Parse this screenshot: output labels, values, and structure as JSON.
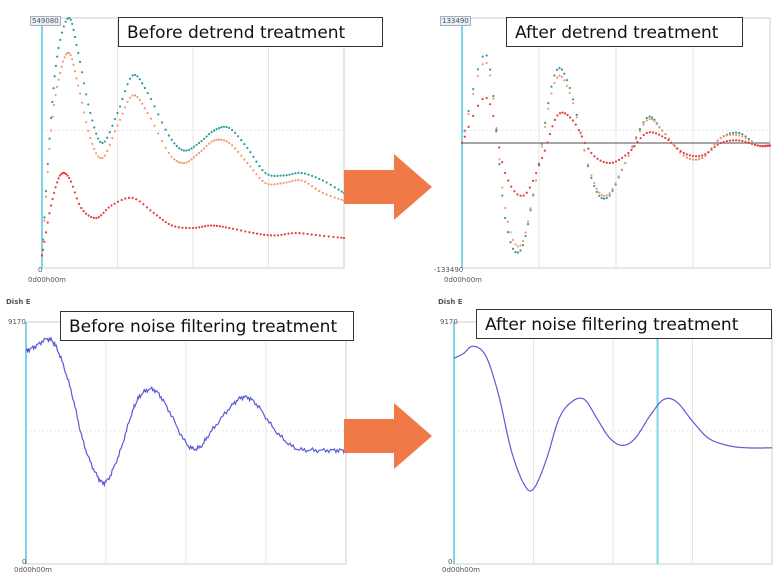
{
  "panels": [
    {
      "id": "p1",
      "title": "Before detrend treatment",
      "y_max_label": "549080",
      "y_min_label": "0",
      "x_label": "0d00h00m",
      "series": [
        {
          "color": "#2e9a97",
          "style": "dots",
          "points": [
            [
              0,
              0.05
            ],
            [
              0.03,
              0.6
            ],
            [
              0.055,
              0.88
            ],
            [
              0.09,
              1.0
            ],
            [
              0.12,
              0.86
            ],
            [
              0.16,
              0.62
            ],
            [
              0.2,
              0.5
            ],
            [
              0.25,
              0.62
            ],
            [
              0.3,
              0.77
            ],
            [
              0.35,
              0.7
            ],
            [
              0.42,
              0.53
            ],
            [
              0.47,
              0.47
            ],
            [
              0.52,
              0.5
            ],
            [
              0.57,
              0.55
            ],
            [
              0.62,
              0.56
            ],
            [
              0.68,
              0.48
            ],
            [
              0.74,
              0.38
            ],
            [
              0.8,
              0.37
            ],
            [
              0.86,
              0.38
            ],
            [
              0.93,
              0.35
            ],
            [
              1.0,
              0.3
            ]
          ]
        },
        {
          "color": "#f29a6b",
          "style": "dots",
          "points": [
            [
              0,
              0.05
            ],
            [
              0.03,
              0.55
            ],
            [
              0.06,
              0.78
            ],
            [
              0.09,
              0.86
            ],
            [
              0.12,
              0.73
            ],
            [
              0.16,
              0.52
            ],
            [
              0.2,
              0.44
            ],
            [
              0.25,
              0.57
            ],
            [
              0.3,
              0.69
            ],
            [
              0.35,
              0.62
            ],
            [
              0.42,
              0.46
            ],
            [
              0.47,
              0.42
            ],
            [
              0.52,
              0.46
            ],
            [
              0.57,
              0.51
            ],
            [
              0.62,
              0.5
            ],
            [
              0.68,
              0.42
            ],
            [
              0.74,
              0.34
            ],
            [
              0.8,
              0.34
            ],
            [
              0.86,
              0.35
            ],
            [
              0.93,
              0.3
            ],
            [
              1.0,
              0.27
            ]
          ]
        },
        {
          "color": "#e83a3a",
          "style": "dots",
          "points": [
            [
              0,
              0.05
            ],
            [
              0.03,
              0.25
            ],
            [
              0.06,
              0.37
            ],
            [
              0.09,
              0.36
            ],
            [
              0.13,
              0.24
            ],
            [
              0.18,
              0.2
            ],
            [
              0.23,
              0.25
            ],
            [
              0.3,
              0.28
            ],
            [
              0.37,
              0.22
            ],
            [
              0.43,
              0.17
            ],
            [
              0.5,
              0.16
            ],
            [
              0.56,
              0.17
            ],
            [
              0.62,
              0.16
            ],
            [
              0.7,
              0.14
            ],
            [
              0.77,
              0.13
            ],
            [
              0.84,
              0.14
            ],
            [
              0.92,
              0.13
            ],
            [
              1.0,
              0.12
            ]
          ]
        }
      ]
    },
    {
      "id": "p2",
      "title": "After detrend treatment",
      "y_max_label": "133490",
      "y_min_label": "-133490",
      "x_label": "0d00h00m",
      "series": [
        {
          "color": "#2e9a97",
          "style": "dots",
          "points": [
            [
              0,
              0.5
            ],
            [
              0.08,
              0.85
            ],
            [
              0.14,
              0.2
            ],
            [
              0.19,
              0.07
            ],
            [
              0.24,
              0.35
            ],
            [
              0.3,
              0.77
            ],
            [
              0.35,
              0.72
            ],
            [
              0.42,
              0.36
            ],
            [
              0.47,
              0.28
            ],
            [
              0.53,
              0.42
            ],
            [
              0.6,
              0.6
            ],
            [
              0.65,
              0.55
            ],
            [
              0.72,
              0.45
            ],
            [
              0.78,
              0.44
            ],
            [
              0.84,
              0.52
            ],
            [
              0.9,
              0.54
            ],
            [
              0.96,
              0.49
            ],
            [
              1.0,
              0.49
            ]
          ]
        },
        {
          "color": "#f29a6b",
          "style": "dots",
          "points": [
            [
              0,
              0.5
            ],
            [
              0.08,
              0.82
            ],
            [
              0.14,
              0.24
            ],
            [
              0.19,
              0.09
            ],
            [
              0.24,
              0.35
            ],
            [
              0.3,
              0.74
            ],
            [
              0.35,
              0.7
            ],
            [
              0.42,
              0.37
            ],
            [
              0.47,
              0.29
            ],
            [
              0.53,
              0.42
            ],
            [
              0.6,
              0.59
            ],
            [
              0.65,
              0.55
            ],
            [
              0.72,
              0.45
            ],
            [
              0.78,
              0.44
            ],
            [
              0.84,
              0.52
            ],
            [
              0.9,
              0.53
            ],
            [
              0.96,
              0.49
            ],
            [
              1.0,
              0.49
            ]
          ]
        },
        {
          "color": "#e83a3a",
          "style": "dots",
          "points": [
            [
              0,
              0.5
            ],
            [
              0.08,
              0.68
            ],
            [
              0.14,
              0.38
            ],
            [
              0.2,
              0.29
            ],
            [
              0.26,
              0.44
            ],
            [
              0.31,
              0.61
            ],
            [
              0.36,
              0.59
            ],
            [
              0.42,
              0.46
            ],
            [
              0.48,
              0.42
            ],
            [
              0.54,
              0.46
            ],
            [
              0.6,
              0.54
            ],
            [
              0.66,
              0.52
            ],
            [
              0.72,
              0.46
            ],
            [
              0.78,
              0.45
            ],
            [
              0.84,
              0.5
            ],
            [
              0.9,
              0.51
            ],
            [
              0.96,
              0.49
            ],
            [
              1.0,
              0.49
            ]
          ]
        }
      ],
      "zero_line": true
    },
    {
      "id": "p3",
      "title": "Before noise filtering treatment",
      "header": "Dish E",
      "y_max_label": "9170",
      "y_min_label": "0",
      "x_label": "0d00h00m",
      "series": [
        {
          "color": "#5a5ad8",
          "style": "noisy",
          "points": [
            [
              0,
              0.88
            ],
            [
              0.03,
              0.9
            ],
            [
              0.07,
              0.93
            ],
            [
              0.1,
              0.88
            ],
            [
              0.14,
              0.72
            ],
            [
              0.18,
              0.5
            ],
            [
              0.22,
              0.37
            ],
            [
              0.25,
              0.34
            ],
            [
              0.29,
              0.45
            ],
            [
              0.33,
              0.62
            ],
            [
              0.36,
              0.7
            ],
            [
              0.4,
              0.72
            ],
            [
              0.44,
              0.65
            ],
            [
              0.5,
              0.5
            ],
            [
              0.54,
              0.48
            ],
            [
              0.58,
              0.55
            ],
            [
              0.64,
              0.65
            ],
            [
              0.68,
              0.69
            ],
            [
              0.72,
              0.66
            ],
            [
              0.78,
              0.55
            ],
            [
              0.84,
              0.48
            ],
            [
              0.9,
              0.47
            ],
            [
              0.96,
              0.47
            ],
            [
              1.0,
              0.47
            ]
          ]
        }
      ]
    },
    {
      "id": "p4",
      "title": "After noise filtering treatment",
      "header": "Dish E",
      "y_max_label": "9170",
      "y_min_label": "0",
      "x_label": "0d00h00m",
      "series": [
        {
          "color": "#5a5ad8",
          "style": "line",
          "points": [
            [
              0,
              0.85
            ],
            [
              0.03,
              0.87
            ],
            [
              0.06,
              0.9
            ],
            [
              0.1,
              0.86
            ],
            [
              0.14,
              0.7
            ],
            [
              0.18,
              0.47
            ],
            [
              0.22,
              0.33
            ],
            [
              0.25,
              0.31
            ],
            [
              0.29,
              0.43
            ],
            [
              0.33,
              0.6
            ],
            [
              0.37,
              0.67
            ],
            [
              0.41,
              0.68
            ],
            [
              0.45,
              0.6
            ],
            [
              0.49,
              0.52
            ],
            [
              0.53,
              0.49
            ],
            [
              0.57,
              0.52
            ],
            [
              0.62,
              0.62
            ],
            [
              0.66,
              0.68
            ],
            [
              0.7,
              0.67
            ],
            [
              0.75,
              0.59
            ],
            [
              0.8,
              0.52
            ],
            [
              0.86,
              0.49
            ],
            [
              0.92,
              0.48
            ],
            [
              1.0,
              0.48
            ]
          ]
        }
      ],
      "cursor_line_x": 0.64
    }
  ],
  "arrows": [
    {
      "color": "#f07a47"
    },
    {
      "color": "#f07a47"
    }
  ]
}
